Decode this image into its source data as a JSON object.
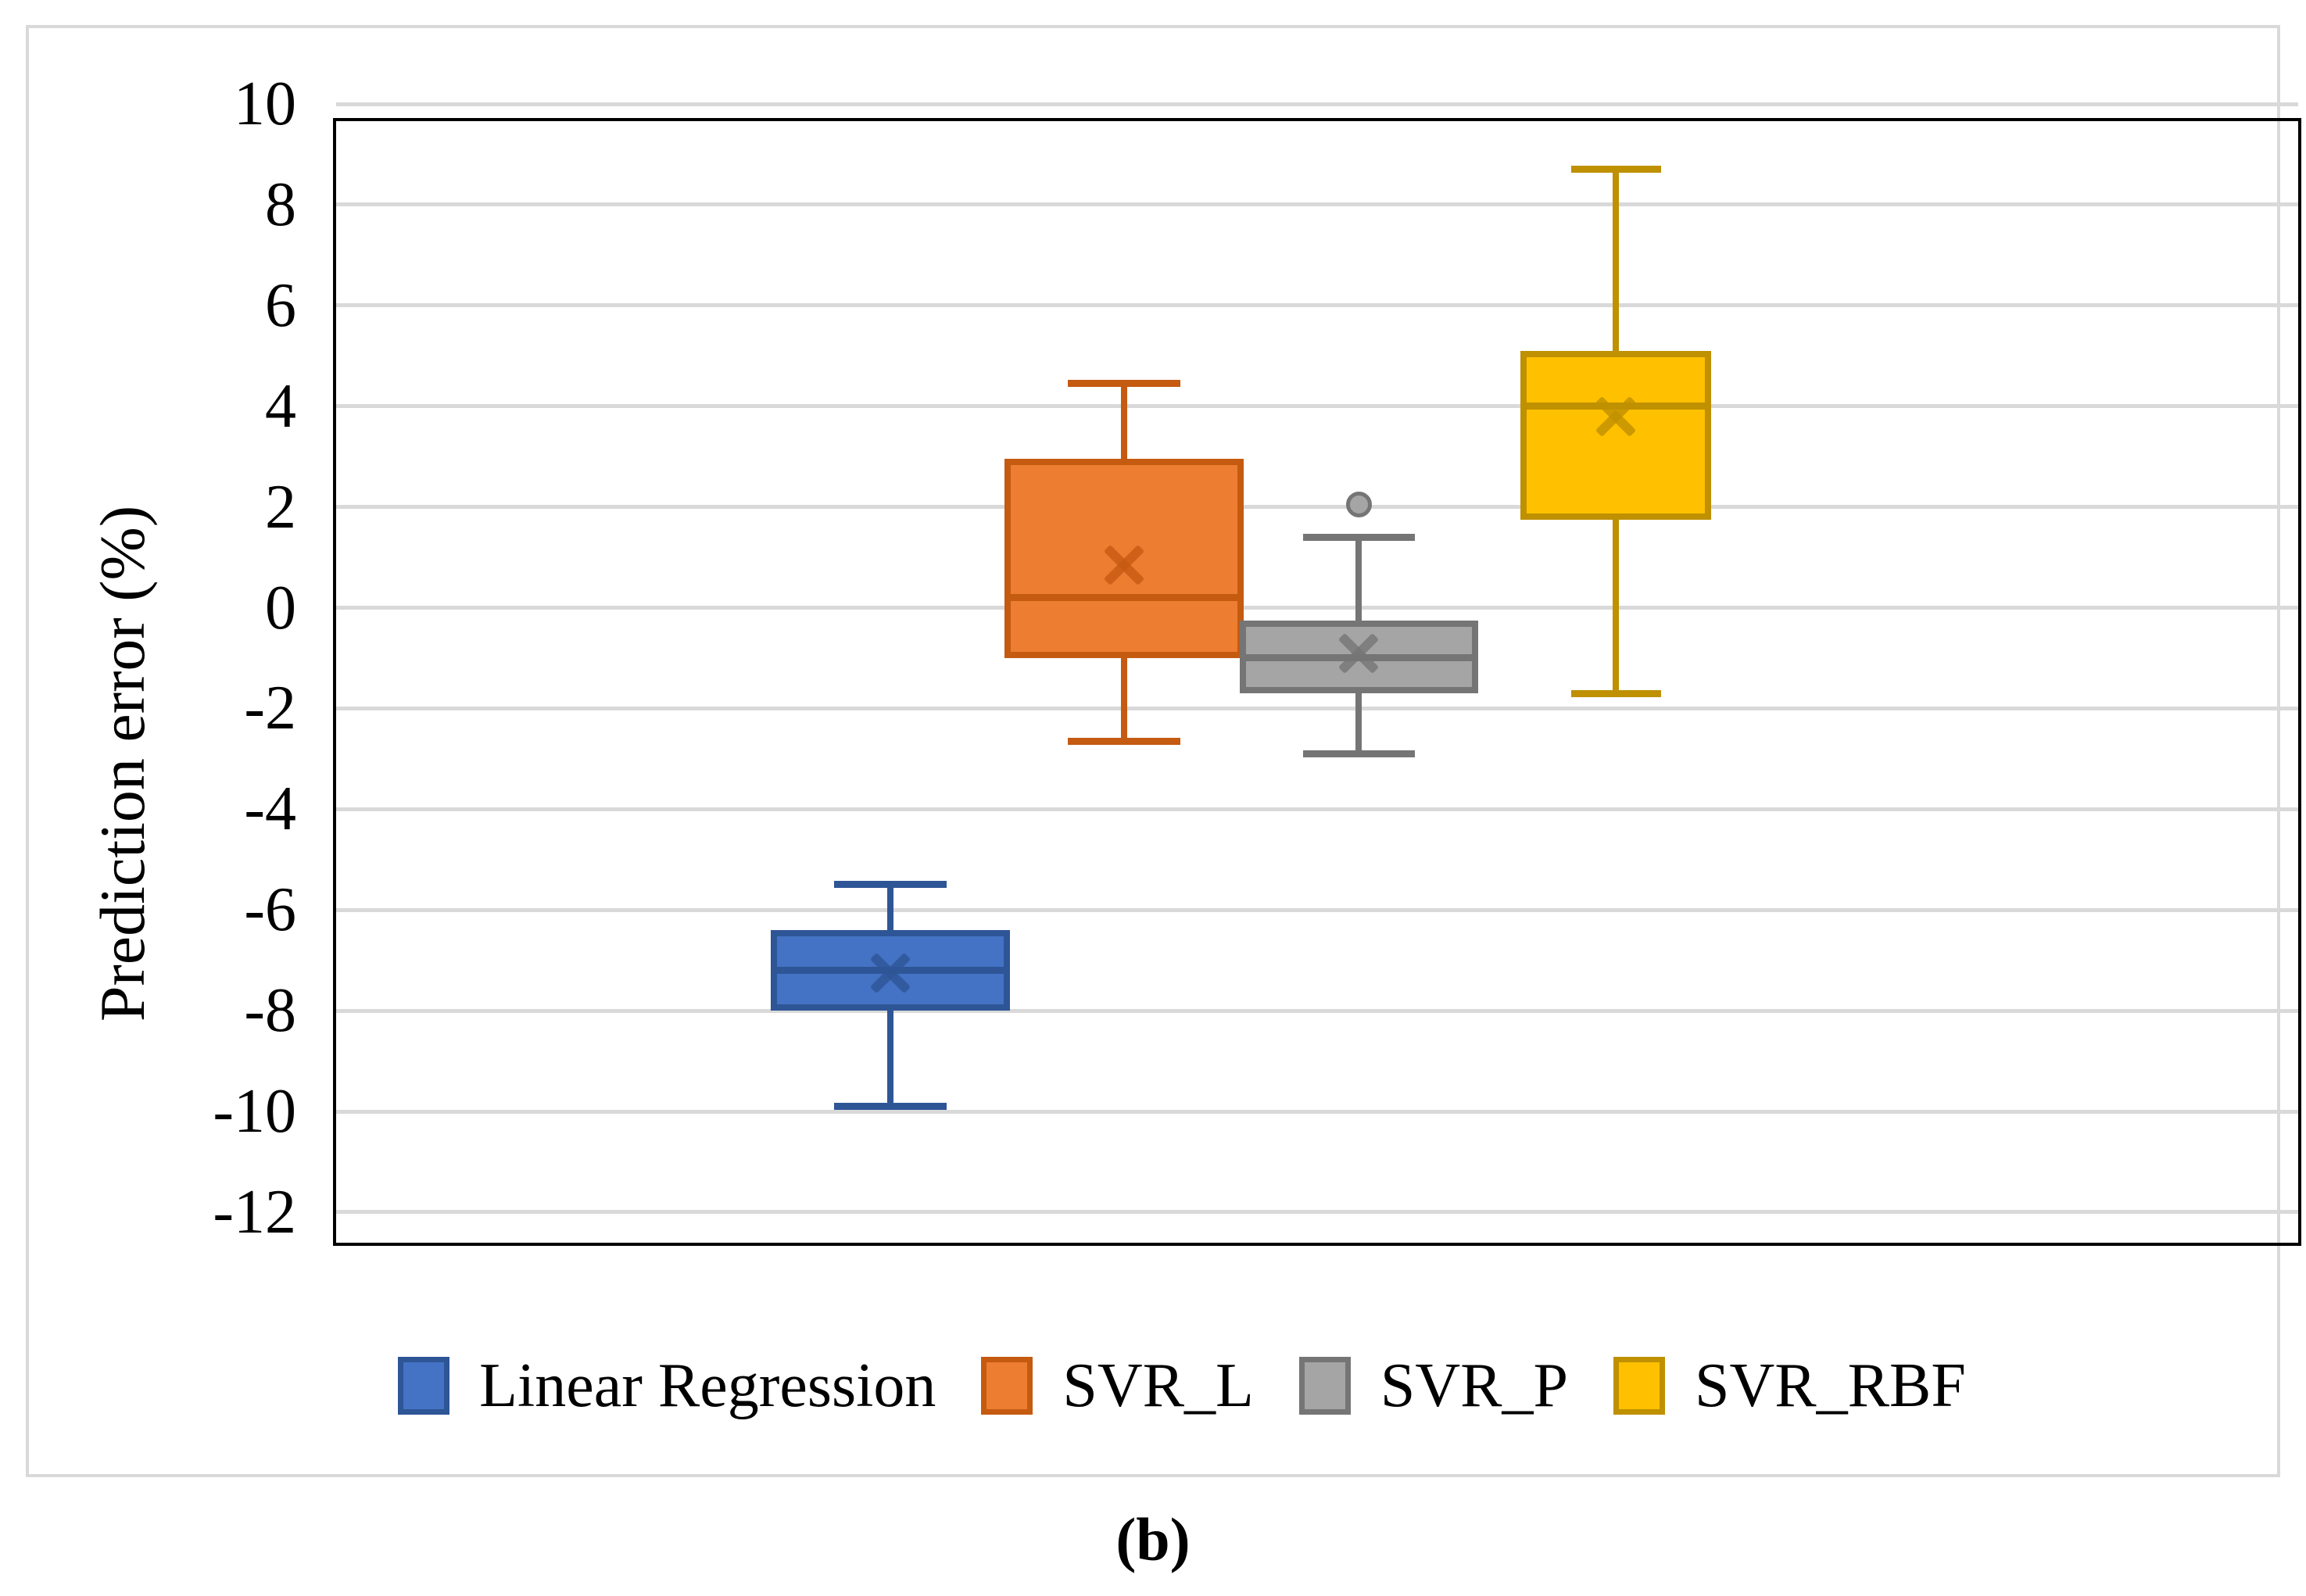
{
  "figure": {
    "caption": "(b)",
    "background_color": "#FFFFFF",
    "outer_border_color": "#D9D9D9"
  },
  "chart_data": {
    "type": "boxplot",
    "title": "",
    "ylabel": "Prediction error (%)",
    "ylim": [
      -12.2,
      10.2
    ],
    "yticks": [
      10,
      8,
      6,
      4,
      2,
      0,
      -2,
      -4,
      -6,
      -8,
      -10,
      -12
    ],
    "grid": "horizontal-on",
    "gridline_color": "#D9D9D9",
    "plot_border_color": "#000000",
    "legend_position": "bottom",
    "series": [
      {
        "name": "Linear Regression",
        "fill": "#4472C4",
        "stroke": "#2E5596",
        "whisker_low": -9.9,
        "q1": -8.0,
        "median": -7.2,
        "mean": -7.25,
        "q3": -6.4,
        "whisker_high": -5.5,
        "outliers": []
      },
      {
        "name": "SVR_L",
        "fill": "#ED7D31",
        "stroke": "#C55A11",
        "whisker_low": -2.65,
        "q1": -1.0,
        "median": 0.2,
        "mean": 0.85,
        "q3": 2.95,
        "whisker_high": 4.45,
        "outliers": []
      },
      {
        "name": "SVR_P",
        "fill": "#A5A5A5",
        "stroke": "#757575",
        "whisker_low": -2.9,
        "q1": -1.7,
        "median": -1.0,
        "mean": -0.9,
        "q3": -0.25,
        "whisker_high": 1.4,
        "outliers": [
          2.05
        ]
      },
      {
        "name": "SVR_RBF",
        "fill": "#FFC000",
        "stroke": "#BF9000",
        "whisker_low": -1.7,
        "q1": 1.75,
        "median": 4.0,
        "mean": 3.8,
        "q3": 5.1,
        "whisker_high": 8.7,
        "outliers": []
      }
    ]
  }
}
